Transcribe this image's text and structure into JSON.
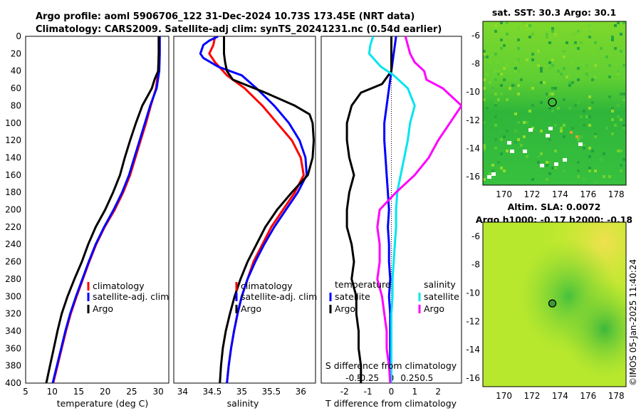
{
  "titles": {
    "line1": "Argo profile: aoml 5906706_122 31-Dec-2024 10.73S 173.45E (NRT data)",
    "line2": "Climatology: CARS2009. Satellite-adj clim: synTS_20241231.nc (0.54d earlier)"
  },
  "colors": {
    "climatology": "#ff0000",
    "satellite": "#0000ff",
    "argo": "#000000",
    "sat_salinity": "#00e5ee",
    "argo_salinity": "#ff00ff"
  },
  "chart_data": [
    {
      "type": "line",
      "name": "temperature",
      "xlabel": "temperature (deg C)",
      "xlim": [
        5,
        32
      ],
      "xticks": [
        5,
        10,
        15,
        20,
        25,
        30
      ],
      "ylim": [
        0,
        400
      ],
      "yticks": [
        0,
        20,
        40,
        60,
        80,
        100,
        120,
        140,
        160,
        180,
        200,
        220,
        240,
        260,
        280,
        300,
        320,
        340,
        360,
        380,
        400
      ],
      "legend": [
        "climatology",
        "satellite-adj. clim",
        "Argo"
      ],
      "series": [
        {
          "name": "climatology",
          "color": "#ff0000",
          "points": [
            [
              30.1,
              0
            ],
            [
              30.1,
              20
            ],
            [
              30.0,
              40
            ],
            [
              29.6,
              60
            ],
            [
              28.6,
              80
            ],
            [
              27.7,
              100
            ],
            [
              26.7,
              120
            ],
            [
              25.7,
              140
            ],
            [
              24.7,
              160
            ],
            [
              23.4,
              180
            ],
            [
              21.8,
              200
            ],
            [
              19.9,
              220
            ],
            [
              18.3,
              240
            ],
            [
              17.0,
              260
            ],
            [
              15.8,
              280
            ],
            [
              14.6,
              300
            ],
            [
              13.5,
              320
            ],
            [
              12.6,
              340
            ],
            [
              11.8,
              360
            ],
            [
              11.0,
              380
            ],
            [
              10.2,
              400
            ]
          ]
        },
        {
          "name": "satellite-adj. clim",
          "color": "#0000ff",
          "points": [
            [
              30.3,
              0
            ],
            [
              30.3,
              20
            ],
            [
              30.2,
              40
            ],
            [
              29.7,
              60
            ],
            [
              28.5,
              80
            ],
            [
              27.5,
              100
            ],
            [
              26.5,
              120
            ],
            [
              25.5,
              140
            ],
            [
              24.5,
              160
            ],
            [
              23.2,
              180
            ],
            [
              21.6,
              200
            ],
            [
              19.8,
              220
            ],
            [
              18.2,
              240
            ],
            [
              16.9,
              260
            ],
            [
              15.7,
              280
            ],
            [
              14.5,
              300
            ],
            [
              13.4,
              320
            ],
            [
              12.5,
              340
            ],
            [
              11.7,
              360
            ],
            [
              10.9,
              380
            ],
            [
              10.1,
              400
            ]
          ]
        },
        {
          "name": "Argo",
          "color": "#000000",
          "points": [
            [
              30.1,
              0
            ],
            [
              30.1,
              20
            ],
            [
              30.0,
              40
            ],
            [
              29.3,
              50
            ],
            [
              28.8,
              60
            ],
            [
              27.0,
              80
            ],
            [
              25.8,
              100
            ],
            [
              24.7,
              120
            ],
            [
              23.7,
              140
            ],
            [
              22.8,
              160
            ],
            [
              21.5,
              180
            ],
            [
              20.0,
              200
            ],
            [
              18.2,
              220
            ],
            [
              16.8,
              240
            ],
            [
              15.6,
              260
            ],
            [
              14.2,
              280
            ],
            [
              12.9,
              300
            ],
            [
              11.8,
              320
            ],
            [
              11.0,
              340
            ],
            [
              10.3,
              360
            ],
            [
              9.6,
              380
            ],
            [
              8.9,
              400
            ]
          ]
        }
      ]
    },
    {
      "type": "line",
      "name": "salinity",
      "xlabel": "salinity",
      "xlim": [
        33.85,
        36.25
      ],
      "xticks": [
        34,
        34.5,
        35,
        35.5,
        36
      ],
      "ylim": [
        0,
        400
      ],
      "legend": [
        "climatology",
        "satellite-adj. clim",
        "Argo"
      ],
      "series": [
        {
          "name": "climatology",
          "color": "#ff0000",
          "points": [
            [
              34.55,
              0
            ],
            [
              34.52,
              10
            ],
            [
              34.45,
              20
            ],
            [
              34.55,
              30
            ],
            [
              34.75,
              45
            ],
            [
              35.05,
              60
            ],
            [
              35.35,
              80
            ],
            [
              35.6,
              100
            ],
            [
              35.85,
              120
            ],
            [
              36.0,
              140
            ],
            [
              36.05,
              160
            ],
            [
              35.9,
              180
            ],
            [
              35.7,
              200
            ],
            [
              35.5,
              220
            ],
            [
              35.35,
              240
            ],
            [
              35.2,
              260
            ],
            [
              35.1,
              280
            ],
            [
              35.0,
              300
            ],
            [
              34.93,
              320
            ],
            [
              34.87,
              340
            ],
            [
              34.82,
              360
            ],
            [
              34.78,
              380
            ],
            [
              34.75,
              400
            ]
          ]
        },
        {
          "name": "satellite-adj. clim",
          "color": "#0000ff",
          "points": [
            [
              34.6,
              0
            ],
            [
              34.45,
              5
            ],
            [
              34.35,
              10
            ],
            [
              34.3,
              20
            ],
            [
              34.35,
              25
            ],
            [
              34.6,
              35
            ],
            [
              35.0,
              45
            ],
            [
              35.25,
              60
            ],
            [
              35.55,
              80
            ],
            [
              35.8,
              100
            ],
            [
              35.98,
              120
            ],
            [
              36.08,
              140
            ],
            [
              36.1,
              160
            ],
            [
              35.95,
              180
            ],
            [
              35.75,
              200
            ],
            [
              35.55,
              220
            ],
            [
              35.38,
              240
            ],
            [
              35.23,
              260
            ],
            [
              35.1,
              280
            ],
            [
              35.0,
              300
            ],
            [
              34.93,
              320
            ],
            [
              34.87,
              340
            ],
            [
              34.82,
              360
            ],
            [
              34.78,
              380
            ],
            [
              34.75,
              400
            ]
          ]
        },
        {
          "name": "Argo",
          "color": "#000000",
          "points": [
            [
              34.7,
              0
            ],
            [
              34.7,
              20
            ],
            [
              34.72,
              30
            ],
            [
              34.75,
              40
            ],
            [
              34.85,
              50
            ],
            [
              35.4,
              65
            ],
            [
              35.9,
              80
            ],
            [
              36.15,
              90
            ],
            [
              36.2,
              100
            ],
            [
              36.22,
              120
            ],
            [
              36.2,
              140
            ],
            [
              36.12,
              160
            ],
            [
              35.85,
              180
            ],
            [
              35.6,
              200
            ],
            [
              35.4,
              220
            ],
            [
              35.25,
              240
            ],
            [
              35.1,
              260
            ],
            [
              34.98,
              280
            ],
            [
              34.88,
              300
            ],
            [
              34.8,
              320
            ],
            [
              34.73,
              340
            ],
            [
              34.68,
              360
            ],
            [
              34.65,
              380
            ],
            [
              34.63,
              400
            ]
          ]
        }
      ]
    },
    {
      "type": "line",
      "name": "differences",
      "xlabel": "T difference from climatology",
      "xlabel_top": "S difference from climatology",
      "xlim": [
        -3,
        3
      ],
      "xticks": [
        -2,
        -1,
        0,
        1,
        2
      ],
      "sxticks": [
        "-0.5",
        "-0.25",
        "0",
        "0.25",
        "0.5"
      ],
      "ylim": [
        0,
        400
      ],
      "legend_temperature_title": "temperature",
      "legend_salinity_title": "salinity",
      "legend_temperature": [
        "satellite",
        "Argo"
      ],
      "legend_salinity": [
        "satellite",
        "Argo"
      ],
      "series": [
        {
          "name": "T satellite",
          "color": "#0000ff",
          "points": [
            [
              0.2,
              0
            ],
            [
              0.1,
              20
            ],
            [
              0.0,
              40
            ],
            [
              -0.1,
              60
            ],
            [
              -0.2,
              80
            ],
            [
              -0.3,
              100
            ],
            [
              -0.3,
              120
            ],
            [
              -0.25,
              140
            ],
            [
              -0.2,
              160
            ],
            [
              -0.15,
              180
            ],
            [
              -0.1,
              200
            ],
            [
              -0.15,
              220
            ],
            [
              -0.1,
              240
            ],
            [
              -0.1,
              260
            ],
            [
              -0.05,
              280
            ],
            [
              -0.1,
              300
            ],
            [
              -0.05,
              320
            ],
            [
              -0.05,
              340
            ],
            [
              -0.05,
              360
            ],
            [
              -0.05,
              380
            ],
            [
              -0.05,
              400
            ]
          ]
        },
        {
          "name": "T Argo",
          "color": "#000000",
          "points": [
            [
              0.0,
              0
            ],
            [
              0.0,
              20
            ],
            [
              0.0,
              40
            ],
            [
              -0.4,
              55
            ],
            [
              -1.3,
              65
            ],
            [
              -1.7,
              80
            ],
            [
              -1.9,
              100
            ],
            [
              -1.9,
              120
            ],
            [
              -1.8,
              140
            ],
            [
              -1.6,
              160
            ],
            [
              -1.8,
              180
            ],
            [
              -1.9,
              200
            ],
            [
              -1.9,
              220
            ],
            [
              -1.7,
              240
            ],
            [
              -1.6,
              260
            ],
            [
              -1.7,
              280
            ],
            [
              -1.5,
              300
            ],
            [
              -1.5,
              320
            ],
            [
              -1.4,
              340
            ],
            [
              -1.4,
              360
            ],
            [
              -1.3,
              380
            ],
            [
              -1.3,
              400
            ]
          ]
        },
        {
          "name": "S satellite",
          "color": "#00e5ee",
          "points": [
            [
              -0.78,
              0
            ],
            [
              -0.9,
              10
            ],
            [
              -0.95,
              20
            ],
            [
              -0.45,
              35
            ],
            [
              0.1,
              45
            ],
            [
              0.7,
              60
            ],
            [
              1.0,
              80
            ],
            [
              0.8,
              100
            ],
            [
              0.7,
              120
            ],
            [
              0.55,
              140
            ],
            [
              0.4,
              160
            ],
            [
              0.25,
              180
            ],
            [
              0.2,
              200
            ],
            [
              0.2,
              220
            ],
            [
              0.15,
              240
            ],
            [
              0.1,
              260
            ],
            [
              0.05,
              280
            ],
            [
              0.05,
              300
            ],
            [
              0.0,
              320
            ],
            [
              0.0,
              340
            ],
            [
              0.0,
              360
            ],
            [
              0.0,
              380
            ],
            [
              0.0,
              400
            ]
          ]
        },
        {
          "name": "S Argo",
          "color": "#ff00ff",
          "points": [
            [
              0.6,
              0
            ],
            [
              0.8,
              20
            ],
            [
              1.0,
              30
            ],
            [
              1.4,
              40
            ],
            [
              1.5,
              50
            ],
            [
              2.2,
              60
            ],
            [
              3.0,
              80
            ],
            [
              2.5,
              100
            ],
            [
              2.0,
              120
            ],
            [
              1.6,
              140
            ],
            [
              1.0,
              160
            ],
            [
              0.2,
              180
            ],
            [
              -0.5,
              200
            ],
            [
              -0.6,
              220
            ],
            [
              -0.5,
              240
            ],
            [
              -0.5,
              260
            ],
            [
              -0.6,
              280
            ],
            [
              -0.4,
              300
            ],
            [
              -0.3,
              320
            ],
            [
              -0.2,
              340
            ],
            [
              -0.2,
              360
            ],
            [
              -0.1,
              380
            ],
            [
              -0.05,
              400
            ]
          ]
        }
      ]
    },
    {
      "type": "heatmap",
      "name": "satellite-sst",
      "title": "sat. SST: 30.3 Argo: 30.1",
      "xticks": [
        "170",
        "172",
        "174",
        "176",
        "178"
      ],
      "yticks": [
        "-6",
        "-8",
        "-10",
        "-12",
        "-14",
        "-16"
      ],
      "xlim": [
        168.5,
        178.7
      ],
      "ylim": [
        -16.6,
        -5
      ],
      "argo_position": [
        173.45,
        -10.73
      ]
    },
    {
      "type": "heatmap",
      "name": "altimetry-sla",
      "title_line1": "Altim. SLA: 0.0072",
      "title_line2": "Argo h1000: -0.17 h2000: -0.18",
      "xticks": [
        "170",
        "172",
        "174",
        "176",
        "178"
      ],
      "yticks": [
        "-6",
        "-8",
        "-10",
        "-12",
        "-14",
        "-16"
      ],
      "xlim": [
        168.5,
        178.7
      ],
      "ylim": [
        -16.6,
        -5
      ],
      "argo_position": [
        173.45,
        -10.73
      ]
    }
  ],
  "watermark": "©IMOS 05-Jan-2025 11:40:24"
}
